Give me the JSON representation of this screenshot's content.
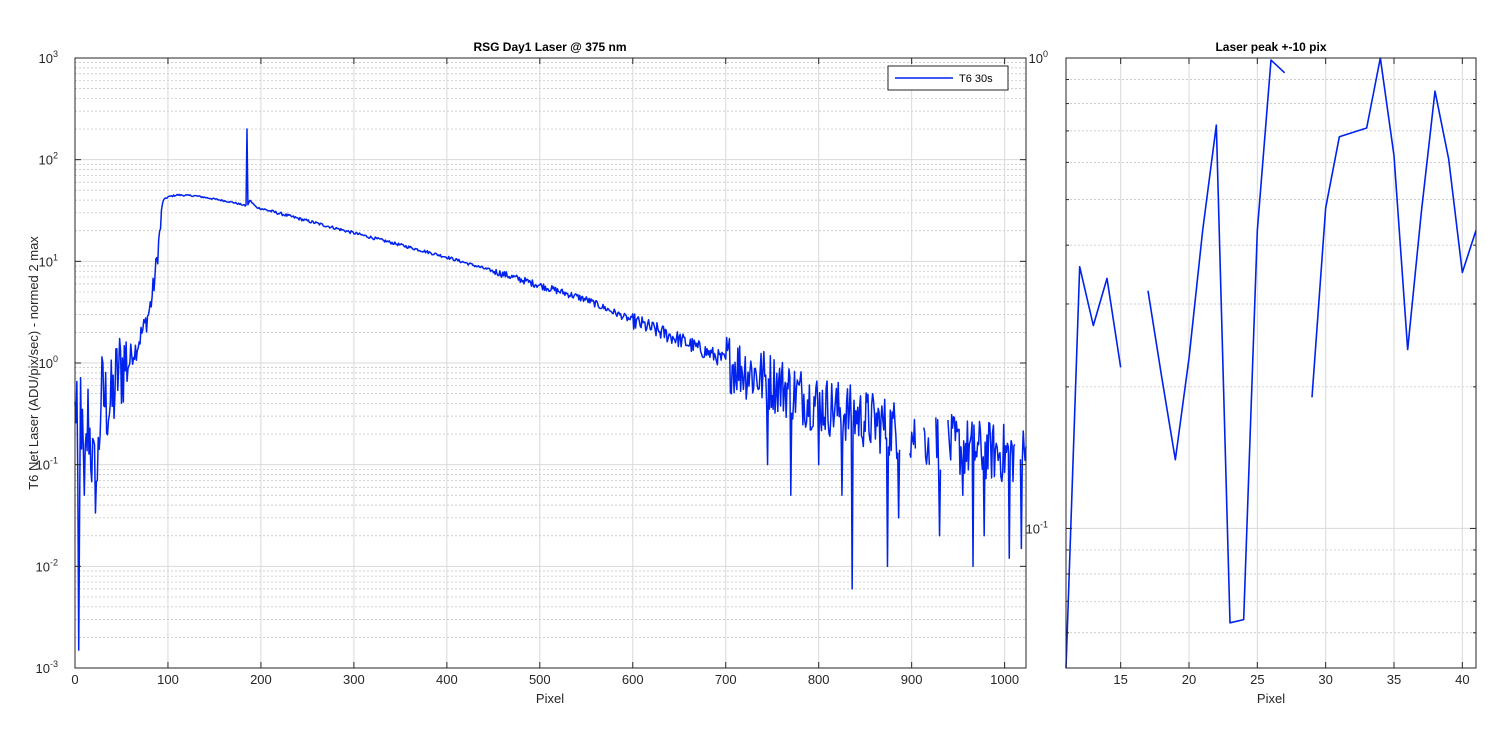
{
  "chart_data": [
    {
      "type": "line",
      "title": "RSG  Day1 Laser @ 375 nm",
      "xlabel": "Pixel",
      "ylabel": "T6 Net Laser (ADU/pix/sec) - normed 2 max",
      "yscale": "log",
      "xlim": [
        0,
        1023
      ],
      "ylim": [
        0.001,
        1000
      ],
      "xticks": [
        "0",
        "100",
        "200",
        "300",
        "400",
        "500",
        "600",
        "700",
        "800",
        "900",
        "1000"
      ],
      "yticks": [
        "10",
        "10",
        "10",
        "10",
        "10",
        "10",
        "10"
      ],
      "ytick_exponents": [
        "-3",
        "-2",
        "-1",
        "0",
        "1",
        "2",
        "3"
      ],
      "grid": true,
      "minor_grid": true,
      "legend_placement": "top-right",
      "color": "#0022ee",
      "series": [
        {
          "name": "T6 30s",
          "anchors": [
            [
              0,
              0.3
            ],
            [
              2,
              0.5
            ],
            [
              4,
              0.0015
            ],
            [
              6,
              0.5
            ],
            [
              10,
              0.05
            ],
            [
              14,
              0.3
            ],
            [
              20,
              0.08
            ],
            [
              24,
              0.07
            ],
            [
              28,
              0.5
            ],
            [
              34,
              0.4
            ],
            [
              40,
              0.4
            ],
            [
              46,
              0.8
            ],
            [
              50,
              0.9
            ],
            [
              56,
              1.1
            ],
            [
              60,
              1.2
            ],
            [
              66,
              1.4
            ],
            [
              70,
              1.8
            ],
            [
              74,
              2.2
            ],
            [
              78,
              2.8
            ],
            [
              82,
              4.0
            ],
            [
              86,
              7.0
            ],
            [
              90,
              15
            ],
            [
              95,
              40
            ],
            [
              100,
              43
            ],
            [
              110,
              45
            ],
            [
              130,
              44
            ],
            [
              150,
              41
            ],
            [
              170,
              38
            ],
            [
              180,
              36
            ],
            [
              184,
              35
            ],
            [
              185,
              200
            ],
            [
              186,
              35
            ],
            [
              188,
              40
            ],
            [
              195,
              34
            ],
            [
              250,
              25
            ],
            [
              300,
              19
            ],
            [
              350,
              14.5
            ],
            [
              400,
              11
            ],
            [
              450,
              8
            ],
            [
              500,
              5.8
            ],
            [
              550,
              4.2
            ],
            [
              600,
              2.6
            ],
            [
              650,
              1.7
            ],
            [
              700,
              1.05
            ],
            [
              750,
              0.65
            ],
            [
              800,
              0.4
            ],
            [
              850,
              0.28
            ],
            [
              900,
              0.2
            ],
            [
              950,
              0.15
            ],
            [
              1023,
              0.12
            ]
          ],
          "dips": [
            [
              4,
              0.0015
            ],
            [
              10,
              0.05
            ],
            [
              24,
              0.07
            ],
            [
              745,
              0.1
            ],
            [
              770,
              0.05
            ],
            [
              800,
              0.1
            ],
            [
              825,
              0.05
            ],
            [
              836,
              0.006
            ],
            [
              874,
              0.01
            ],
            [
              886,
              0.03
            ],
            [
              930,
              0.02
            ],
            [
              955,
              0.05
            ],
            [
              966,
              0.01
            ],
            [
              978,
              0.02
            ],
            [
              1005,
              0.012
            ],
            [
              1018,
              0.015
            ]
          ],
          "gaps": [
            [
              888,
              897
            ],
            [
              905,
              912
            ],
            [
              920,
              925
            ],
            [
              932,
              938
            ],
            [
              1012,
              1016
            ]
          ]
        }
      ]
    },
    {
      "type": "line",
      "title": "Laser peak +-10 pix",
      "xlabel": "Pixel",
      "yscale": "log",
      "xlim": [
        11,
        41
      ],
      "ylim": [
        0.0505,
        1.0
      ],
      "xticks": [
        "15",
        "20",
        "25",
        "30",
        "35",
        "40"
      ],
      "yticks": [
        "10",
        "10"
      ],
      "ytick_exponents": [
        "-1",
        "0"
      ],
      "grid": true,
      "minor_grid": true,
      "color": "#0022ee",
      "series": [
        {
          "segments": [
            [
              [
                11,
                0.05
              ],
              [
                12,
                0.36
              ],
              [
                13,
                0.27
              ],
              [
                14,
                0.34
              ],
              [
                15,
                0.22
              ]
            ],
            [
              [
                17,
                0.32
              ],
              [
                18,
                0.21
              ],
              [
                19,
                0.14
              ],
              [
                20,
                0.23
              ],
              [
                21,
                0.43
              ],
              [
                22,
                0.72
              ],
              [
                23,
                0.063
              ],
              [
                24,
                0.064
              ],
              [
                25,
                0.43
              ],
              [
                26,
                0.99
              ],
              [
                27,
                0.93
              ]
            ],
            [
              [
                29,
                0.19
              ],
              [
                30,
                0.48
              ],
              [
                31,
                0.68
              ],
              [
                33,
                0.71
              ],
              [
                34,
                1.02
              ],
              [
                35,
                0.62
              ],
              [
                36,
                0.24
              ],
              [
                37,
                0.47
              ],
              [
                38,
                0.85
              ],
              [
                39,
                0.61
              ],
              [
                40,
                0.35
              ],
              [
                41,
                0.43
              ]
            ]
          ]
        }
      ]
    }
  ]
}
